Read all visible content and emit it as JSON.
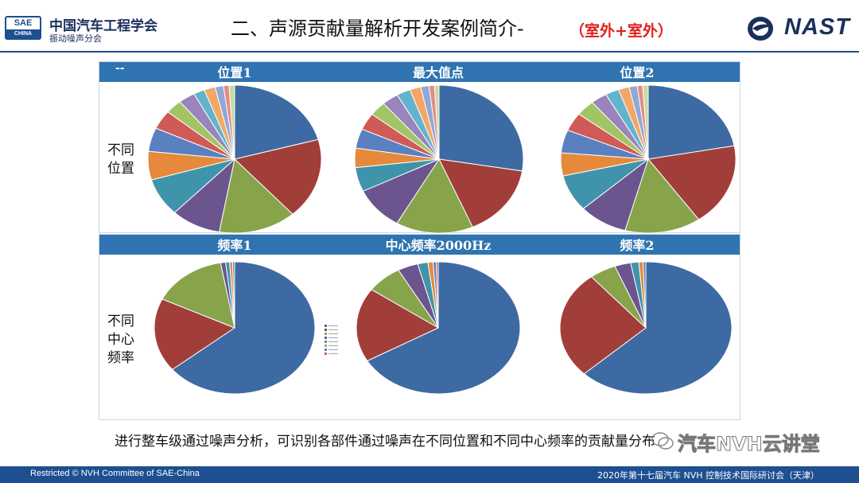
{
  "header": {
    "logo_top": "SAE",
    "logo_bottom": "CHINA",
    "org_name": "中国汽车工程学会",
    "org_sub": "振动噪声分会",
    "title": "二、声源贡献量解析开发案例简介-",
    "title_highlight": "（室外+室外）",
    "right_logo_text": "NAST"
  },
  "top_panel": {
    "headers": [
      "--",
      "位置1",
      "最大值点",
      "位置2"
    ],
    "row_label": [
      "不同",
      "位置"
    ]
  },
  "bottom_panel": {
    "headers": [
      "频率1",
      "中心频率2000Hz",
      "频率2"
    ],
    "row_label": [
      "不同",
      "中心",
      "频率"
    ]
  },
  "colors": [
    "#3d6aa3",
    "#a23e3a",
    "#88a44a",
    "#6c558f",
    "#3f94ac",
    "#e58a3c",
    "#5a80c0",
    "#d05a56",
    "#a3c464",
    "#9a84bc",
    "#63b3cc",
    "#f2a766",
    "#8fa8d6",
    "#e28c89",
    "#c6dca0"
  ],
  "chart_data": [
    {
      "type": "pie",
      "title": "位置1",
      "values": [
        20,
        17,
        14,
        9,
        8,
        6,
        5,
        4,
        3,
        3,
        2,
        2,
        1.5,
        1,
        1
      ]
    },
    {
      "type": "pie",
      "title": "最大值点",
      "values": [
        26,
        15,
        14,
        9,
        5,
        4,
        4,
        3.5,
        3,
        3,
        2.5,
        2,
        1.5,
        1,
        0.8
      ]
    },
    {
      "type": "pie",
      "title": "位置2",
      "values": [
        22,
        18,
        14,
        9,
        8,
        5,
        5,
        4,
        3.5,
        3,
        2.5,
        2,
        1.5,
        1,
        1
      ]
    },
    {
      "type": "pie",
      "title": "频率1",
      "values": [
        64,
        18,
        15,
        1,
        0.8,
        0.6,
        0.4
      ]
    },
    {
      "type": "pie",
      "title": "中心频率2000Hz",
      "values": [
        66,
        18,
        7,
        4,
        2,
        1,
        0.6,
        0.4
      ]
    },
    {
      "type": "pie",
      "title": "频率2",
      "values": [
        62,
        26,
        5,
        3,
        1.5,
        0.8,
        0.5
      ]
    }
  ],
  "caption": "进行整车级通过噪声分析，可识别各部件通过噪声在不同位置和不同中心频率的贡献量分布",
  "watermark": "汽车NVH云讲堂",
  "footer": {
    "left": "Restricted © NVH Committee of SAE-China",
    "right": "2020年第十七届汽车 NVH 控制技术国际研讨会（天津）"
  }
}
